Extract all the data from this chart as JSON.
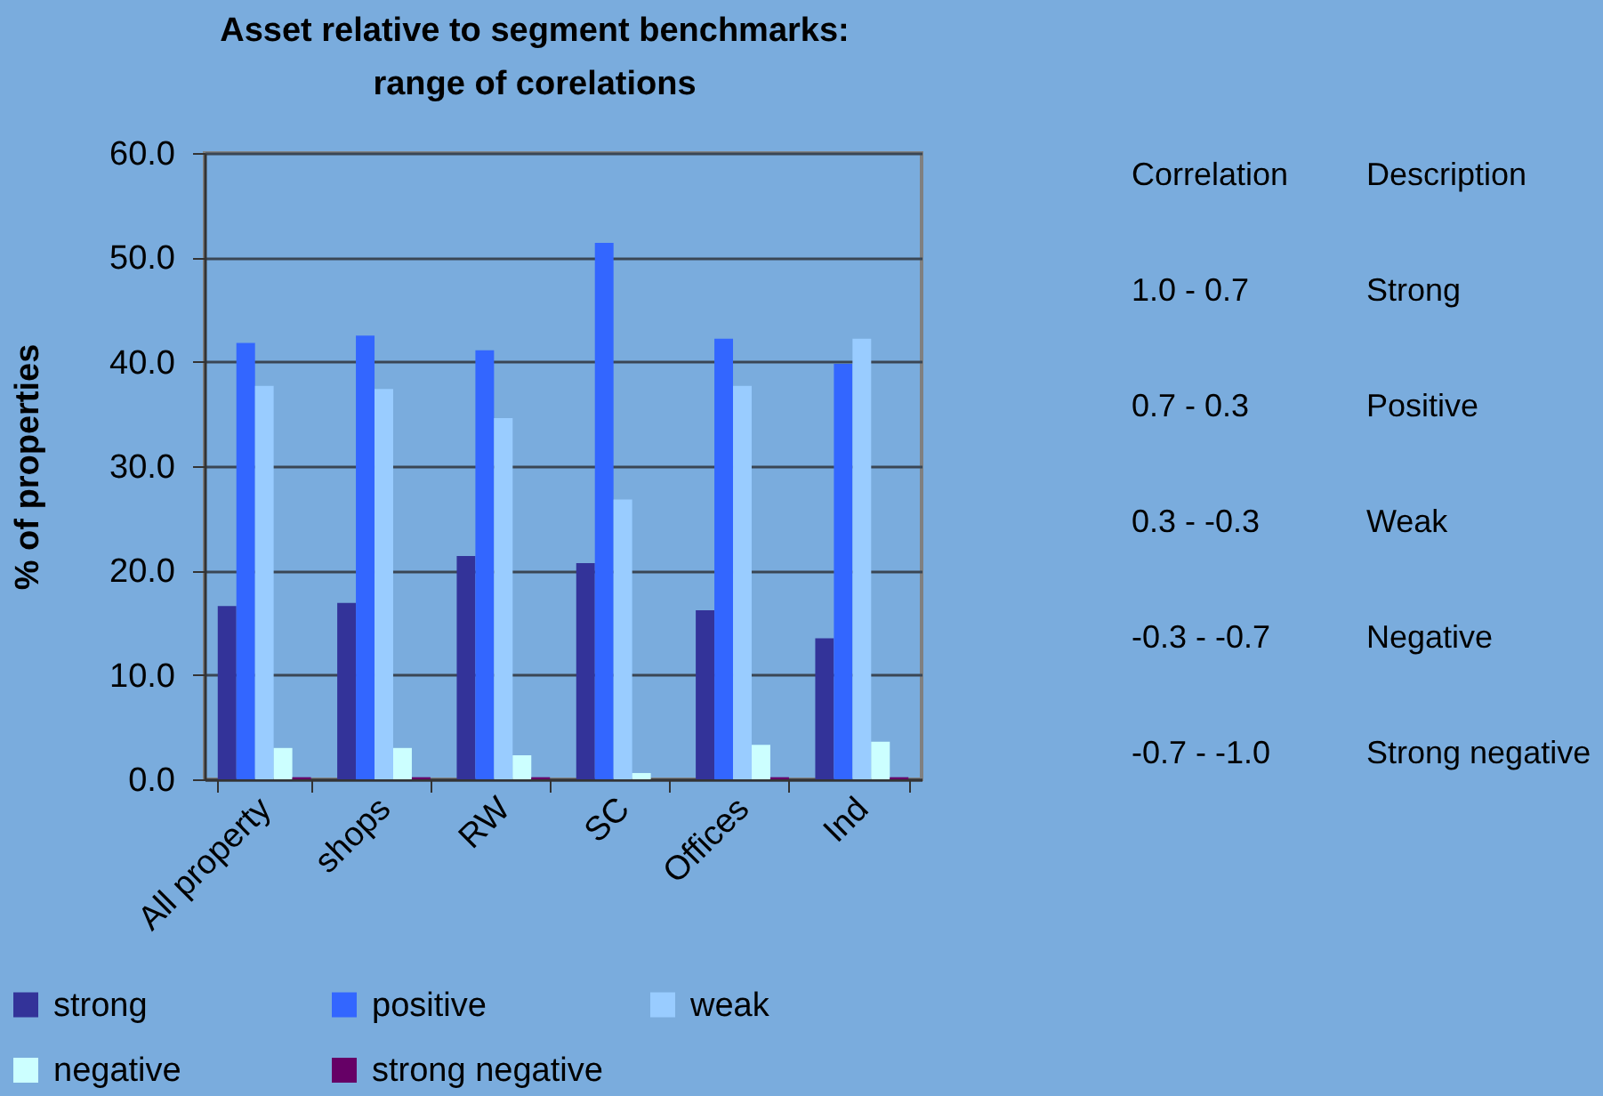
{
  "chart_data": {
    "type": "bar",
    "title": "Asset relative to segment benchmarks:\nrange of corelations",
    "ylabel": "% of properties",
    "categories": [
      "All property",
      "shops",
      "RW",
      "SC",
      "Offices",
      "Ind"
    ],
    "series": [
      {
        "name": "strong",
        "color": "#333399",
        "values": [
          16.6,
          16.9,
          21.4,
          20.7,
          16.2,
          13.5
        ]
      },
      {
        "name": "positive",
        "color": "#3366ff",
        "values": [
          41.8,
          42.5,
          41.1,
          51.4,
          42.2,
          39.8
        ]
      },
      {
        "name": "weak",
        "color": "#99ccff",
        "values": [
          37.7,
          37.4,
          34.6,
          26.8,
          37.7,
          42.2
        ]
      },
      {
        "name": "negative",
        "color": "#ccffff",
        "values": [
          3.0,
          3.0,
          2.3,
          0.6,
          3.3,
          3.6
        ]
      },
      {
        "name": "strong negative",
        "color": "#660066",
        "values": [
          0.2,
          0.2,
          0.2,
          null,
          0.2,
          0.2
        ]
      }
    ],
    "ylim": [
      0,
      60
    ],
    "yticks": [
      {
        "value": 0,
        "label": "0.0"
      },
      {
        "value": 10,
        "label": "10.0"
      },
      {
        "value": 20,
        "label": "20.0"
      },
      {
        "value": 30,
        "label": "30.0"
      },
      {
        "value": 40,
        "label": "40.0"
      },
      {
        "value": 50,
        "label": "50.0"
      },
      {
        "value": 60,
        "label": "60.0"
      }
    ],
    "grid": "y",
    "legend": "bottom",
    "annotations": [
      "Correlation",
      "Description",
      "1.0 - 0.7",
      "Strong",
      "0.7 - 0.3",
      "Positive",
      "0.3 - -0.3",
      "Weak",
      "-0.3 - -0.7",
      "Negative",
      "-0.7 - -1.0",
      "Strong negative"
    ]
  }
}
